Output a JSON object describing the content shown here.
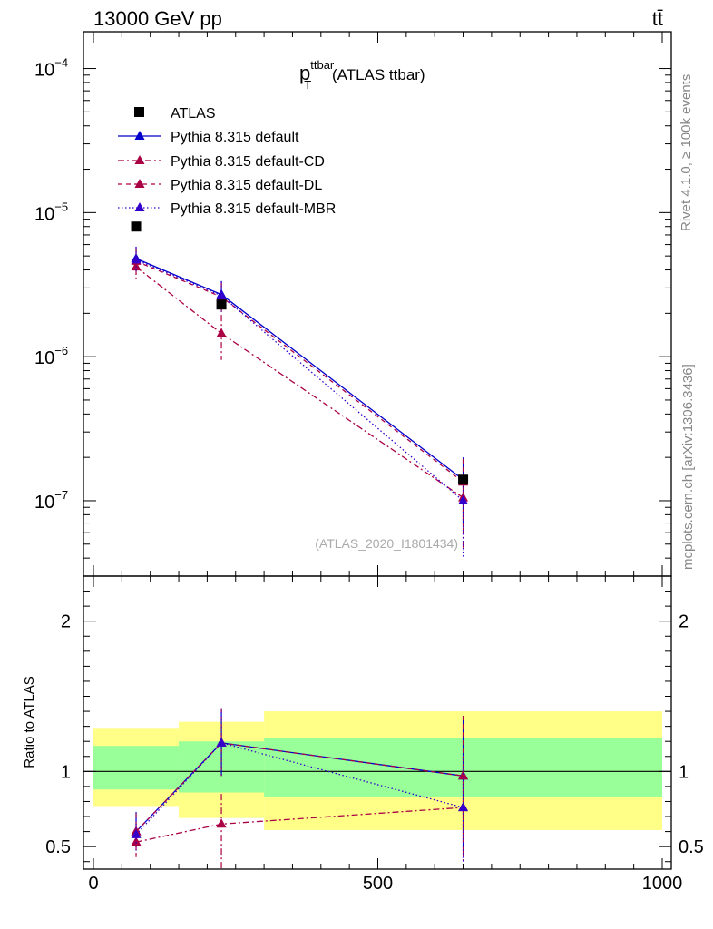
{
  "header": {
    "left": "13000 GeV pp",
    "right": "tt̄"
  },
  "side": {
    "rivet": "Rivet 4.1.0, ≥ 100k events",
    "mcplots": "mcplots.cern.ch [arXiv:1306.3436]"
  },
  "chart_data": {
    "type": "line",
    "title_main": "p",
    "title_sup": "ttbar",
    "title_sub": "T",
    "title_rest": " (ATLAS ttbar)",
    "analysis": "(ATLAS_2020_I1801434)",
    "xlim": [
      0,
      1000
    ],
    "x_ticks": [
      0,
      500,
      1000
    ],
    "x_tick_labels": [
      "0",
      "500",
      "1000"
    ],
    "bins": [
      [
        0,
        150
      ],
      [
        150,
        300
      ],
      [
        300,
        1000
      ]
    ],
    "x": [
      75,
      225,
      650
    ],
    "main": {
      "yscale": "log",
      "ylim": [
        3e-08,
        0.00018
      ],
      "y_ticks": [
        {
          "value": 1e-07,
          "base": "10",
          "exp": "−7"
        },
        {
          "value": 1e-06,
          "base": "10",
          "exp": "−6"
        },
        {
          "value": 1e-05,
          "base": "10",
          "exp": "−5"
        },
        {
          "value": 0.0001,
          "base": "10",
          "exp": "−4"
        }
      ],
      "data": {
        "name": "ATLAS",
        "values": [
          8e-06,
          2.3e-06,
          1.4e-07
        ]
      },
      "series": [
        {
          "name": "Pythia 8.315 default",
          "color": "#0000cc",
          "dash": "",
          "values": [
            4.8e-06,
            2.7e-06,
            1.4e-07
          ],
          "err_up": [
            1e-06,
            6.5e-07,
            6e-08
          ],
          "err_dn": [
            9e-07,
            6e-07,
            7e-08
          ]
        },
        {
          "name": "Pythia 8.315 default-CD",
          "color": "#aa0044",
          "dash": "7,3,2,3",
          "values": [
            4.2e-06,
            1.45e-06,
            1.05e-07
          ],
          "err_up": [
            9e-07,
            5e-07,
            5e-08
          ],
          "err_dn": [
            8e-07,
            5e-07,
            6e-08
          ]
        },
        {
          "name": "Pythia 8.315 default-DL",
          "color": "#aa0044",
          "dash": "5,4",
          "values": [
            4.6e-06,
            2.6e-06,
            1.35e-07
          ],
          "err_up": [
            1e-06,
            6.5e-07,
            6e-08
          ],
          "err_dn": [
            9e-07,
            6e-07,
            7e-08
          ]
        },
        {
          "name": "Pythia 8.315 default-MBR",
          "color": "#3300cc",
          "dash": "1.5,2.5",
          "values": [
            4.7e-06,
            2.65e-06,
            1e-07
          ],
          "err_up": [
            1e-06,
            6.5e-07,
            5e-08
          ],
          "err_dn": [
            9e-07,
            6e-07,
            6e-08
          ]
        }
      ]
    },
    "ratio": {
      "ylabel": "Ratio to ATLAS",
      "ylim": [
        0.35,
        2.3
      ],
      "y_ticks": [
        {
          "value": 0.5,
          "label": "0.5"
        },
        {
          "value": 1,
          "label": "1"
        },
        {
          "value": 2,
          "label": "2"
        }
      ],
      "band_yellow": [
        [
          0.77,
          1.29
        ],
        [
          0.69,
          1.33
        ],
        [
          0.61,
          1.4
        ]
      ],
      "band_green": [
        [
          0.88,
          1.17
        ],
        [
          0.86,
          1.2
        ],
        [
          0.83,
          1.22
        ]
      ],
      "series": [
        {
          "name": "Pythia 8.315 default",
          "values": [
            0.6,
            1.19,
            0.97
          ],
          "err_up": [
            0.13,
            0.23,
            0.4
          ],
          "err_dn": [
            0.11,
            0.22,
            0.5
          ]
        },
        {
          "name": "Pythia 8.315 default-CD",
          "values": [
            0.53,
            0.65,
            0.76
          ],
          "err_up": [
            0.11,
            0.2,
            0.35
          ],
          "err_dn": [
            0.1,
            0.3,
            0.4
          ]
        },
        {
          "name": "Pythia 8.315 default-DL",
          "values": [
            0.6,
            1.19,
            0.97
          ],
          "err_up": [
            0.12,
            0.23,
            0.4
          ],
          "err_dn": [
            0.11,
            0.22,
            0.5
          ]
        },
        {
          "name": "Pythia 8.315 default-MBR",
          "values": [
            0.58,
            1.19,
            0.76
          ],
          "err_up": [
            0.12,
            0.23,
            0.35
          ],
          "err_dn": [
            0.11,
            0.22,
            0.4
          ]
        }
      ]
    }
  }
}
